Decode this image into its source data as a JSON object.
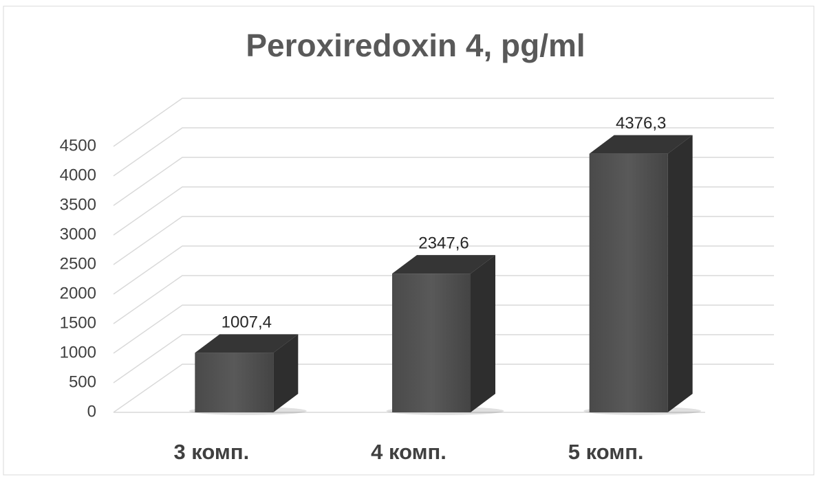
{
  "chart_data": {
    "type": "bar3d",
    "title": "Peroxiredoxin 4, pg/ml",
    "categories": [
      "3 комп.",
      "4 комп.",
      "5 комп."
    ],
    "values": [
      1007.4,
      2347.6,
      4376.3
    ],
    "value_labels": [
      "1007,4",
      "2347,6",
      "4376,3"
    ],
    "color": "#404040",
    "ylim": [
      0,
      4500
    ],
    "yticks": [
      0,
      500,
      1000,
      1500,
      2000,
      2500,
      3000,
      3500,
      4000,
      4500
    ],
    "grid": true
  }
}
